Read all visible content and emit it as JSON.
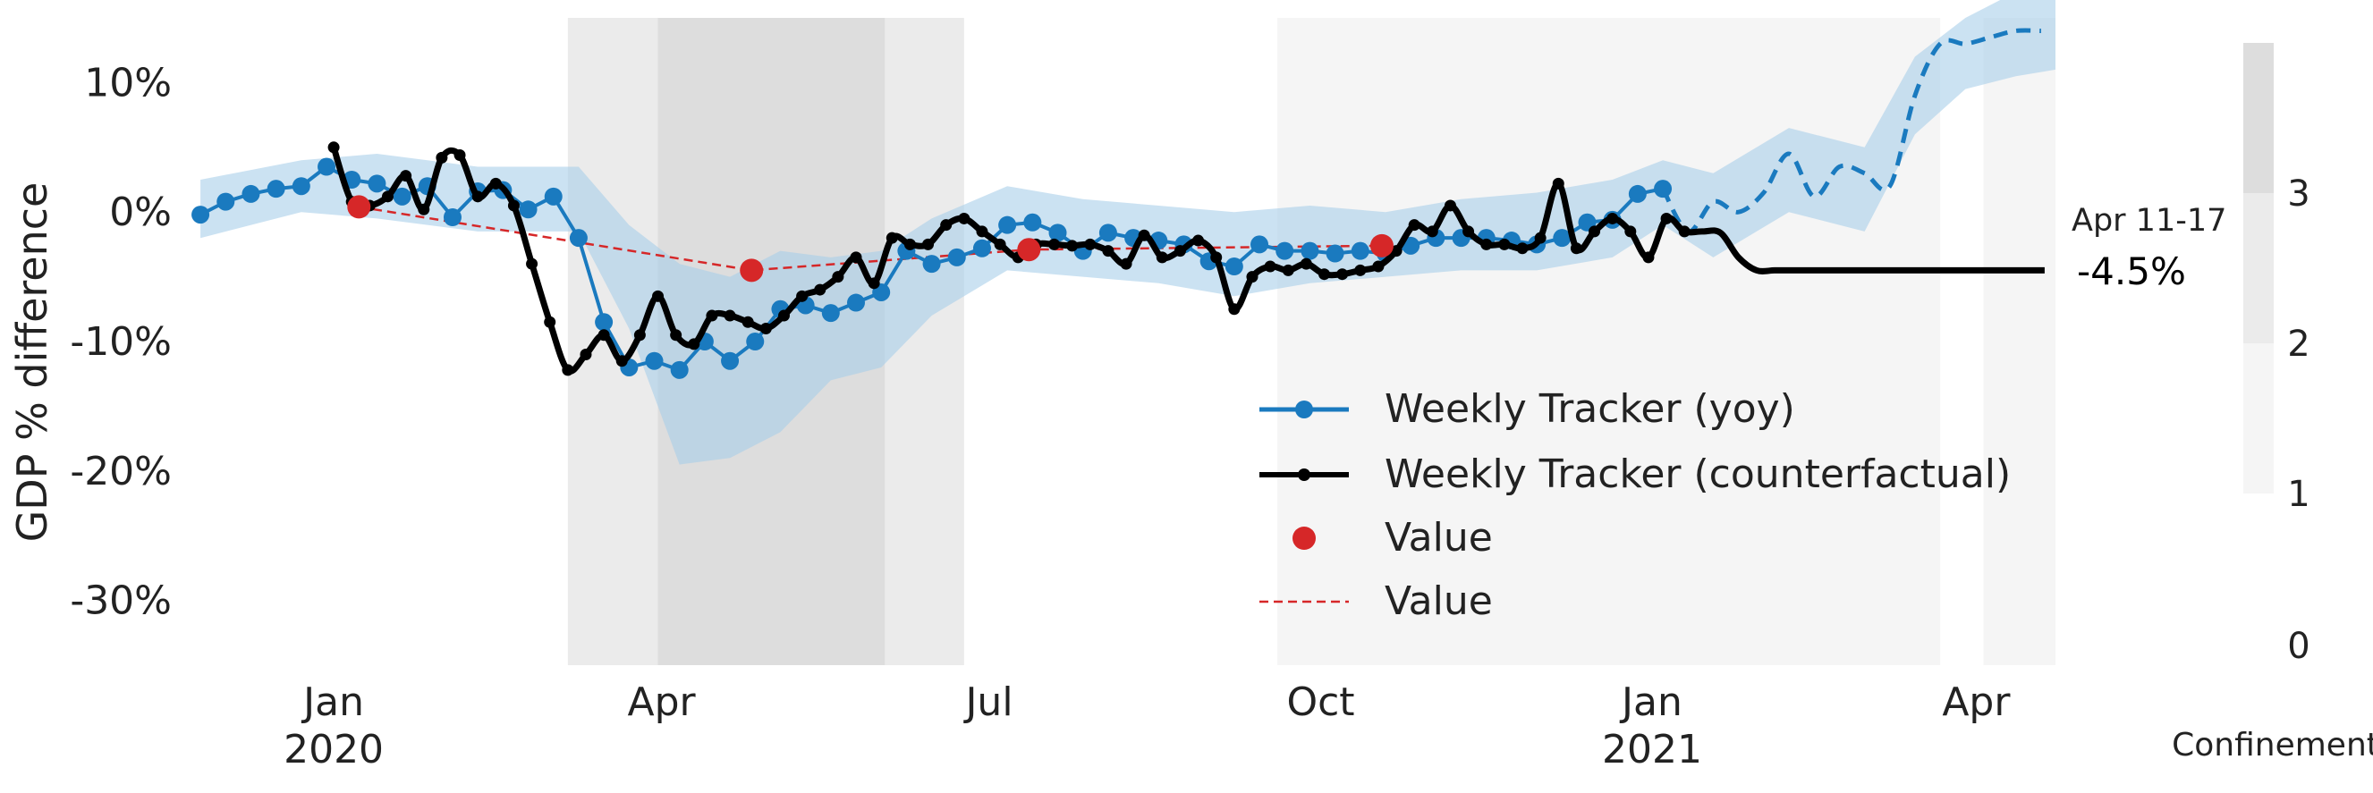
{
  "chart_data": {
    "type": "line",
    "title": "",
    "xlabel": "",
    "ylabel": "GDP % difference",
    "xlim": [
      "2019-11-22",
      "2021-04-23"
    ],
    "ylim": [
      -35,
      15
    ],
    "grid": false,
    "legend_position": "lower-right",
    "y_ticks": [
      {
        "value": 10,
        "label": "10%"
      },
      {
        "value": 0,
        "label": "0%"
      },
      {
        "value": -10,
        "label": "-10%"
      },
      {
        "value": -20,
        "label": "-20%"
      },
      {
        "value": -30,
        "label": "-30%"
      }
    ],
    "x_ticks": [
      {
        "date": "2020-01-01",
        "label": "Jan",
        "sublabel": "2020"
      },
      {
        "date": "2020-04-01",
        "label": "Apr",
        "sublabel": ""
      },
      {
        "date": "2020-07-01",
        "label": "Jul",
        "sublabel": ""
      },
      {
        "date": "2020-10-01",
        "label": "Oct",
        "sublabel": ""
      },
      {
        "date": "2021-01-01",
        "label": "Jan",
        "sublabel": "2021"
      },
      {
        "date": "2021-04-01",
        "label": "Apr",
        "sublabel": ""
      }
    ],
    "confinement_periods": [
      {
        "start": "2020-03-06",
        "end": "2020-06-24",
        "level": 2
      },
      {
        "start": "2020-03-31",
        "end": "2020-06-02",
        "level": 3
      },
      {
        "start": "2020-09-19",
        "end": "2021-03-22",
        "level": 1
      },
      {
        "start": "2021-04-03",
        "end": "2021-04-23",
        "level": 1
      }
    ],
    "confinement_colorbar": {
      "label": "Confinement",
      "ticks": [
        {
          "value": 0,
          "label": "0"
        },
        {
          "value": 1,
          "label": "1"
        },
        {
          "value": 2,
          "label": "2"
        },
        {
          "value": 3,
          "label": "3"
        }
      ],
      "colors": [
        "#f5f5f5",
        "#ebebeb",
        "#dddddd"
      ]
    },
    "annotation": {
      "date_label": "Apr 11-17",
      "value_label": "-4.5%"
    },
    "colors": {
      "yoy": "#1a7abf",
      "band": "#a9cfea",
      "counterfactual": "#000000",
      "value": "#d62728"
    },
    "series": [
      {
        "name": "Weekly Tracker (yoy)",
        "style": "line-markers",
        "x": [
          "2019-11-25",
          "2019-12-02",
          "2019-12-09",
          "2019-12-16",
          "2019-12-23",
          "2019-12-30",
          "2020-01-06",
          "2020-01-13",
          "2020-01-20",
          "2020-01-27",
          "2020-02-03",
          "2020-02-10",
          "2020-02-17",
          "2020-02-24",
          "2020-03-02",
          "2020-03-09",
          "2020-03-16",
          "2020-03-23",
          "2020-03-30",
          "2020-04-06",
          "2020-04-13",
          "2020-04-20",
          "2020-04-27",
          "2020-05-04",
          "2020-05-11",
          "2020-05-18",
          "2020-05-25",
          "2020-06-01",
          "2020-06-08",
          "2020-06-15",
          "2020-06-22",
          "2020-06-29",
          "2020-07-06",
          "2020-07-13",
          "2020-07-20",
          "2020-07-27",
          "2020-08-03",
          "2020-08-10",
          "2020-08-17",
          "2020-08-24",
          "2020-08-31",
          "2020-09-07",
          "2020-09-14",
          "2020-09-21",
          "2020-09-28",
          "2020-10-05",
          "2020-10-12",
          "2020-10-19",
          "2020-10-26",
          "2020-11-02",
          "2020-11-09",
          "2020-11-16",
          "2020-11-23",
          "2020-11-30",
          "2020-12-07",
          "2020-12-14",
          "2020-12-21",
          "2020-12-28",
          "2021-01-04"
        ],
        "y": [
          -0.2,
          0.8,
          1.4,
          1.8,
          2.0,
          3.5,
          2.5,
          2.2,
          1.2,
          2.0,
          -0.4,
          1.6,
          1.7,
          0.2,
          1.2,
          -2.0,
          -8.5,
          -12.0,
          -11.5,
          -12.2,
          -10.0,
          -11.5,
          -10.0,
          -7.5,
          -7.2,
          -7.8,
          -7.0,
          -6.2,
          -3.0,
          -4.0,
          -3.5,
          -2.8,
          -1.0,
          -0.8,
          -1.6,
          -3.0,
          -1.6,
          -2.0,
          -2.2,
          -2.5,
          -3.8,
          -4.2,
          -2.5,
          -3.0,
          -3.0,
          -3.2,
          -3.0,
          -3.2,
          -2.6,
          -2.0,
          -2.0,
          -2.0,
          -2.2,
          -2.5,
          -2.0,
          -0.8,
          -0.6,
          1.4,
          1.8
        ]
      },
      {
        "name": "Weekly Tracker (yoy) projection",
        "style": "dashed",
        "x": [
          "2021-01-04",
          "2021-01-11",
          "2021-01-18",
          "2021-01-25",
          "2021-02-01",
          "2021-02-08",
          "2021-02-15",
          "2021-02-22",
          "2021-03-01",
          "2021-03-08",
          "2021-03-15",
          "2021-03-22",
          "2021-03-29",
          "2021-04-05",
          "2021-04-12",
          "2021-04-19"
        ],
        "y": [
          1.8,
          -1.5,
          0.8,
          0.0,
          1.5,
          4.5,
          1.2,
          3.5,
          3.0,
          2.0,
          9.0,
          13.0,
          13.0,
          13.5,
          14.0,
          14.0
        ]
      },
      {
        "name": "Weekly Tracker (counterfactual)",
        "style": "line-markers",
        "x": [
          "2020-01-01",
          "2020-01-06",
          "2020-01-11",
          "2020-01-16",
          "2020-01-21",
          "2020-01-26",
          "2020-01-31",
          "2020-02-05",
          "2020-02-10",
          "2020-02-15",
          "2020-02-20",
          "2020-02-25",
          "2020-03-01",
          "2020-03-06",
          "2020-03-11",
          "2020-03-16",
          "2020-03-21",
          "2020-03-26",
          "2020-03-31",
          "2020-04-05",
          "2020-04-10",
          "2020-04-15",
          "2020-04-20",
          "2020-04-25",
          "2020-04-30",
          "2020-05-05",
          "2020-05-10",
          "2020-05-15",
          "2020-05-20",
          "2020-05-25",
          "2020-05-30",
          "2020-06-04",
          "2020-06-09",
          "2020-06-14",
          "2020-06-19",
          "2020-06-24",
          "2020-06-29",
          "2020-07-04",
          "2020-07-09",
          "2020-07-14",
          "2020-07-19",
          "2020-07-24",
          "2020-07-29",
          "2020-08-03",
          "2020-08-08",
          "2020-08-13",
          "2020-08-18",
          "2020-08-23",
          "2020-08-28",
          "2020-09-02",
          "2020-09-07",
          "2020-09-12",
          "2020-09-17",
          "2020-09-22",
          "2020-09-27",
          "2020-10-02",
          "2020-10-07",
          "2020-10-12",
          "2020-10-17",
          "2020-10-22",
          "2020-10-27",
          "2020-11-01",
          "2020-11-06",
          "2020-11-11",
          "2020-11-16",
          "2020-11-21",
          "2020-11-26",
          "2020-12-01",
          "2020-12-06",
          "2020-12-11",
          "2020-12-16",
          "2020-12-21",
          "2020-12-26",
          "2020-12-31",
          "2021-01-05",
          "2021-01-10",
          "2021-01-15",
          "2021-01-20",
          "2021-01-25",
          "2021-01-30",
          "2021-02-04",
          "2021-02-09",
          "2021-02-14",
          "2021-02-19",
          "2021-02-24",
          "2021-03-01",
          "2021-03-06",
          "2021-03-11",
          "2021-03-16",
          "2021-03-21",
          "2021-03-26",
          "2021-03-31",
          "2021-04-05",
          "2021-04-10",
          "2021-04-15",
          "2021-04-20"
        ],
        "y": [
          5.0,
          0.8,
          0.5,
          1.2,
          2.8,
          0.2,
          4.2,
          4.4,
          1.2,
          2.2,
          0.5,
          -4.0,
          -8.5,
          -12.2,
          -11.0,
          -9.5,
          -11.5,
          -9.5,
          -6.5,
          -9.5,
          -10.2,
          -8.0,
          -8.0,
          -8.5,
          -9.0,
          -8.0,
          -6.5,
          -6.0,
          -5.0,
          -3.5,
          -5.5,
          -2.0,
          -2.5,
          -2.5,
          -1.0,
          -0.5,
          -1.5,
          -2.5,
          -3.5,
          -2.5,
          -2.5,
          -2.6,
          -2.5,
          -3.0,
          -4.0,
          -1.8,
          -3.5,
          -3.0,
          -2.2,
          -3.5,
          -7.5,
          -5.0,
          -4.2,
          -4.5,
          -4.0,
          -4.8,
          -4.8,
          -4.5,
          -4.2,
          -3.0,
          -1.0,
          -1.5,
          0.5,
          -1.5,
          -2.5,
          -2.5,
          -2.8,
          -2.0,
          2.2,
          -2.8,
          -1.5,
          -0.5,
          -1.5,
          -3.5,
          -0.5,
          -1.5,
          -1.5,
          -1.6,
          -3.5,
          -4.5,
          -4.5,
          -4.5,
          -4.5,
          -4.5,
          -4.5,
          -4.5,
          -4.5,
          -4.5,
          -4.5,
          -4.5,
          -4.5,
          -4.5,
          -4.5,
          -4.5,
          -4.5,
          -4.5
        ]
      },
      {
        "name": "Value",
        "style": "markers",
        "x": [
          "2020-01-08",
          "2020-04-26",
          "2020-07-12",
          "2020-10-18"
        ],
        "y": [
          0.4,
          -4.5,
          -2.9,
          -2.6
        ]
      },
      {
        "name": "Value",
        "style": "dashed-line",
        "x": [
          "2020-01-08",
          "2020-04-26",
          "2020-07-12",
          "2020-10-18"
        ],
        "y": [
          0.4,
          -4.5,
          -2.9,
          -2.6
        ]
      }
    ],
    "yoy_band": {
      "x": [
        "2019-11-25",
        "2019-12-23",
        "2020-01-13",
        "2020-02-10",
        "2020-03-09",
        "2020-03-23",
        "2020-04-06",
        "2020-04-20",
        "2020-05-04",
        "2020-05-18",
        "2020-06-01",
        "2020-06-15",
        "2020-07-06",
        "2020-07-27",
        "2020-08-17",
        "2020-09-07",
        "2020-09-28",
        "2020-10-19",
        "2020-11-09",
        "2020-11-30",
        "2020-12-21",
        "2021-01-04",
        "2021-01-18",
        "2021-02-08",
        "2021-03-01",
        "2021-03-15",
        "2021-03-29",
        "2021-04-12",
        "2021-04-23"
      ],
      "upper": [
        2.5,
        4.0,
        4.5,
        3.5,
        3.5,
        -1.0,
        -4.0,
        -5.0,
        -3.0,
        -3.5,
        -3.0,
        -0.5,
        2.0,
        1.0,
        0.5,
        0.0,
        0.5,
        0.0,
        1.0,
        1.5,
        2.5,
        4.0,
        3.0,
        6.5,
        5.0,
        12.0,
        15.0,
        17.0,
        17.0
      ],
      "lower": [
        -2.0,
        0.0,
        -0.5,
        -1.5,
        -1.5,
        -9.0,
        -19.5,
        -19.0,
        -17.0,
        -13.0,
        -12.0,
        -8.0,
        -4.5,
        -5.0,
        -5.5,
        -6.5,
        -5.5,
        -5.0,
        -4.5,
        -4.5,
        -3.5,
        -1.0,
        -3.5,
        0.0,
        -1.5,
        6.0,
        9.5,
        10.5,
        11.0
      ]
    }
  }
}
